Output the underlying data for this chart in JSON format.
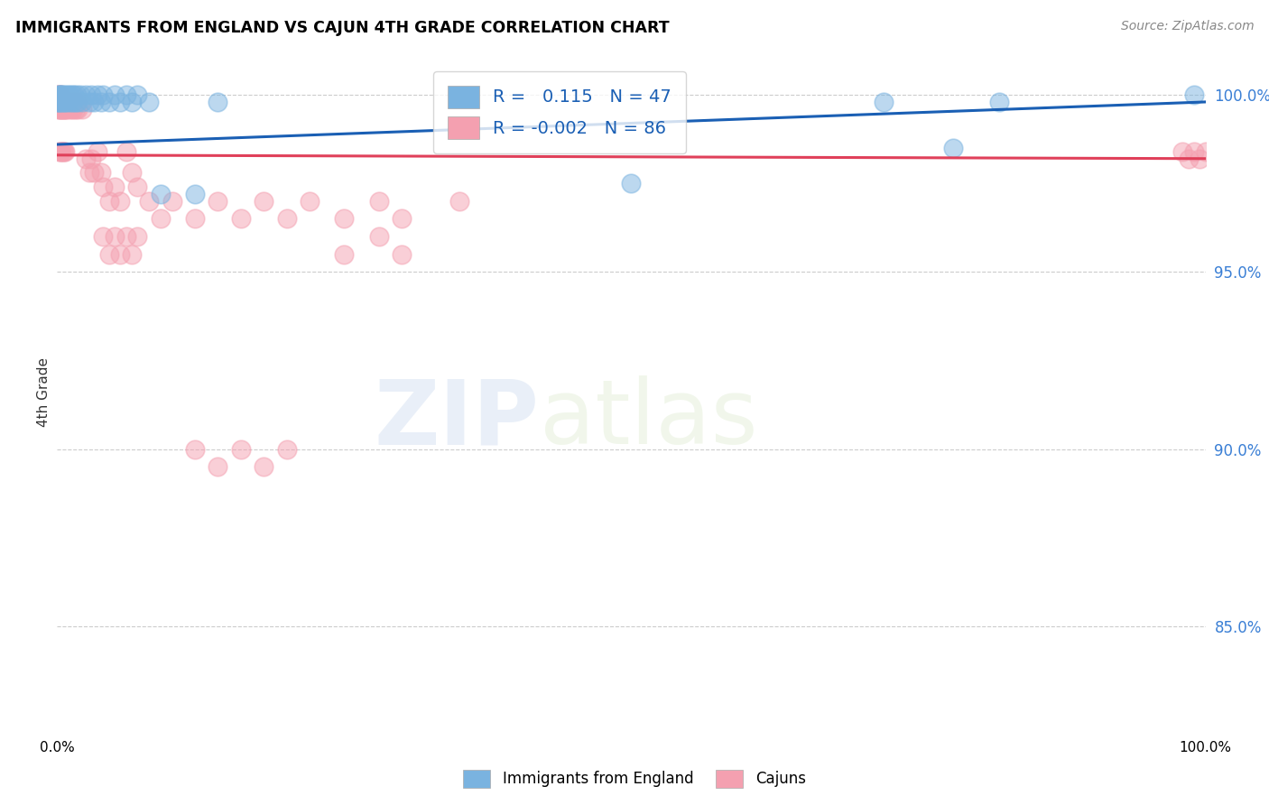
{
  "title": "IMMIGRANTS FROM ENGLAND VS CAJUN 4TH GRADE CORRELATION CHART",
  "source": "Source: ZipAtlas.com",
  "ylabel": "4th Grade",
  "blue_R": 0.115,
  "blue_N": 47,
  "pink_R": -0.002,
  "pink_N": 86,
  "blue_color": "#7ab3e0",
  "pink_color": "#f4a0b0",
  "blue_line_color": "#1a5fb4",
  "pink_line_color": "#e0405a",
  "watermark_zip": "ZIP",
  "watermark_atlas": "atlas",
  "xlim": [
    0.0,
    1.0
  ],
  "ylim": [
    0.82,
    1.012
  ],
  "yticks": [
    0.85,
    0.9,
    0.95,
    1.0
  ],
  "ytick_labels": [
    "85.0%",
    "90.0%",
    "95.0%",
    "100.0%"
  ],
  "blue_trend_x": [
    0.0,
    1.0
  ],
  "blue_trend_y": [
    0.986,
    0.998
  ],
  "pink_trend_x": [
    0.0,
    1.0
  ],
  "pink_trend_y": [
    0.983,
    0.982
  ],
  "blue_scatter_x": [
    0.0,
    0.001,
    0.001,
    0.002,
    0.002,
    0.003,
    0.003,
    0.004,
    0.005,
    0.005,
    0.006,
    0.007,
    0.008,
    0.009,
    0.01,
    0.011,
    0.012,
    0.013,
    0.014,
    0.015,
    0.016,
    0.017,
    0.018,
    0.02,
    0.022,
    0.025,
    0.028,
    0.03,
    0.032,
    0.035,
    0.038,
    0.04,
    0.045,
    0.05,
    0.055,
    0.06,
    0.065,
    0.07,
    0.08,
    0.09,
    0.12,
    0.14,
    0.5,
    0.72,
    0.78,
    0.82,
    0.99
  ],
  "blue_scatter_y": [
    0.998,
    1.0,
    0.998,
    1.0,
    0.998,
    1.0,
    0.998,
    1.0,
    0.998,
    1.0,
    0.998,
    1.0,
    0.998,
    1.0,
    0.998,
    1.0,
    0.998,
    1.0,
    0.998,
    1.0,
    0.998,
    1.0,
    0.998,
    1.0,
    0.998,
    1.0,
    0.998,
    1.0,
    0.998,
    1.0,
    0.998,
    1.0,
    0.998,
    1.0,
    0.998,
    1.0,
    0.998,
    1.0,
    0.998,
    0.972,
    0.972,
    0.998,
    0.975,
    0.998,
    0.985,
    0.998,
    1.0
  ],
  "pink_scatter_x": [
    0.0,
    0.0,
    0.001,
    0.001,
    0.001,
    0.002,
    0.002,
    0.002,
    0.003,
    0.003,
    0.003,
    0.004,
    0.004,
    0.005,
    0.005,
    0.006,
    0.006,
    0.007,
    0.007,
    0.008,
    0.008,
    0.009,
    0.01,
    0.01,
    0.011,
    0.012,
    0.013,
    0.014,
    0.015,
    0.016,
    0.017,
    0.018,
    0.02,
    0.022,
    0.025,
    0.028,
    0.03,
    0.032,
    0.035,
    0.038,
    0.04,
    0.045,
    0.05,
    0.055,
    0.06,
    0.065,
    0.07,
    0.08,
    0.09,
    0.1,
    0.12,
    0.14,
    0.16,
    0.18,
    0.2,
    0.22,
    0.25,
    0.28,
    0.3,
    0.35,
    0.04,
    0.045,
    0.05,
    0.055,
    0.06,
    0.065,
    0.07,
    0.25,
    0.28,
    0.3,
    0.12,
    0.14,
    0.16,
    0.18,
    0.2,
    0.98,
    0.985,
    0.99,
    0.995,
    1.0,
    0.002,
    0.003,
    0.004,
    0.005,
    0.006,
    0.007
  ],
  "pink_scatter_y": [
    1.0,
    0.998,
    1.0,
    0.998,
    0.996,
    1.0,
    0.998,
    0.996,
    1.0,
    0.998,
    0.996,
    0.998,
    0.996,
    0.998,
    0.996,
    0.998,
    0.996,
    0.998,
    0.996,
    0.998,
    0.996,
    0.998,
    0.998,
    0.996,
    0.998,
    0.996,
    0.998,
    0.996,
    0.998,
    0.996,
    0.998,
    0.996,
    0.998,
    0.996,
    0.982,
    0.978,
    0.982,
    0.978,
    0.984,
    0.978,
    0.974,
    0.97,
    0.974,
    0.97,
    0.984,
    0.978,
    0.974,
    0.97,
    0.965,
    0.97,
    0.965,
    0.97,
    0.965,
    0.97,
    0.965,
    0.97,
    0.965,
    0.97,
    0.965,
    0.97,
    0.96,
    0.955,
    0.96,
    0.955,
    0.96,
    0.955,
    0.96,
    0.955,
    0.96,
    0.955,
    0.9,
    0.895,
    0.9,
    0.895,
    0.9,
    0.984,
    0.982,
    0.984,
    0.982,
    0.984,
    0.984,
    0.984,
    0.984,
    0.984,
    0.984,
    0.984
  ]
}
